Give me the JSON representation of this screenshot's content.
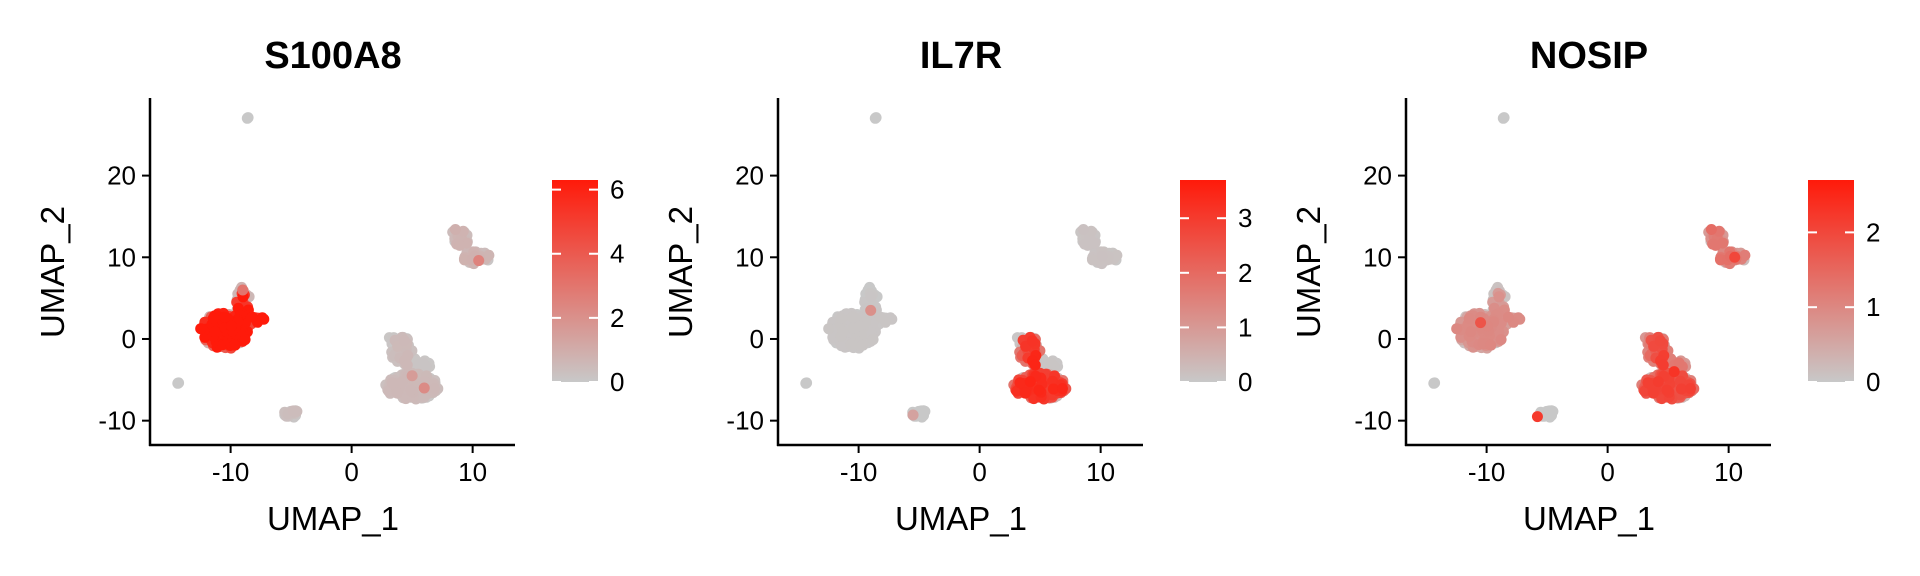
{
  "colors": {
    "low": "#c8c8c8",
    "high": "#ff1a0a",
    "axis": "#000000"
  },
  "chart_data": [
    {
      "type": "scatter",
      "title": "S100A8",
      "xlabel": "UMAP_1",
      "ylabel": "UMAP_2",
      "xlim": [
        -16,
        13.5
      ],
      "ylim": [
        -12,
        29.5
      ],
      "xticks": [
        -10,
        0,
        10
      ],
      "yticks": [
        -10,
        0,
        10,
        20
      ],
      "legend": {
        "position": "right",
        "min": 0,
        "max": 6.3,
        "ticks": [
          0,
          2,
          4,
          6
        ]
      },
      "expression": {
        "cl1": 5.3,
        "cl2": 0.4,
        "cl3": 0.1,
        "cl4": 0.6,
        "cl5": 0.3,
        "cl6": 0.0
      },
      "highlights": [
        {
          "x": 10.5,
          "y": 9.6,
          "v": 2.5
        },
        {
          "x": 6.0,
          "y": -6.0,
          "v": 2.2
        },
        {
          "x": 5.0,
          "y": -4.5,
          "v": 1.6
        },
        {
          "x": -9.0,
          "y": 6.0,
          "v": 3.0
        }
      ]
    },
    {
      "type": "scatter",
      "title": "IL7R",
      "xlabel": "UMAP_1",
      "ylabel": "UMAP_2",
      "xlim": [
        -16,
        13.5
      ],
      "ylim": [
        -12,
        29.5
      ],
      "xticks": [
        -10,
        0,
        10
      ],
      "yticks": [
        -10,
        0,
        10,
        20
      ],
      "legend": {
        "position": "right",
        "min": 0,
        "max": 3.7,
        "ticks": [
          0,
          1,
          2,
          3
        ]
      },
      "expression": {
        "cl1": 0.05,
        "cl2": 2.4,
        "cl3": 0.05,
        "cl4": 0.1,
        "cl5": 0.0,
        "cl6": 0.0
      },
      "highlights": [
        {
          "x": -9.0,
          "y": 3.5,
          "v": 1.2
        },
        {
          "x": -5.5,
          "y": -9.3,
          "v": 0.8
        }
      ]
    },
    {
      "type": "scatter",
      "title": "NOSIP",
      "xlabel": "UMAP_1",
      "ylabel": "UMAP_2",
      "xlim": [
        -16,
        13.5
      ],
      "ylim": [
        -12,
        29.5
      ],
      "xticks": [
        -10,
        0,
        10
      ],
      "yticks": [
        -10,
        0,
        10,
        20
      ],
      "legend": {
        "position": "right",
        "min": 0,
        "max": 2.7,
        "ticks": [
          0,
          1,
          2
        ]
      },
      "expression": {
        "cl1": 0.7,
        "cl2": 1.5,
        "cl3": 0.9,
        "cl4": 1.0,
        "cl5": 0.0,
        "cl6": 0.0
      },
      "highlights": [
        {
          "x": -5.8,
          "y": -9.5,
          "v": 2.2
        },
        {
          "x": 10.5,
          "y": 10.0,
          "v": 2.0
        },
        {
          "x": -10.5,
          "y": 2.0,
          "v": 1.8
        },
        {
          "x": 5.5,
          "y": -4.0,
          "v": 2.3
        }
      ]
    }
  ]
}
